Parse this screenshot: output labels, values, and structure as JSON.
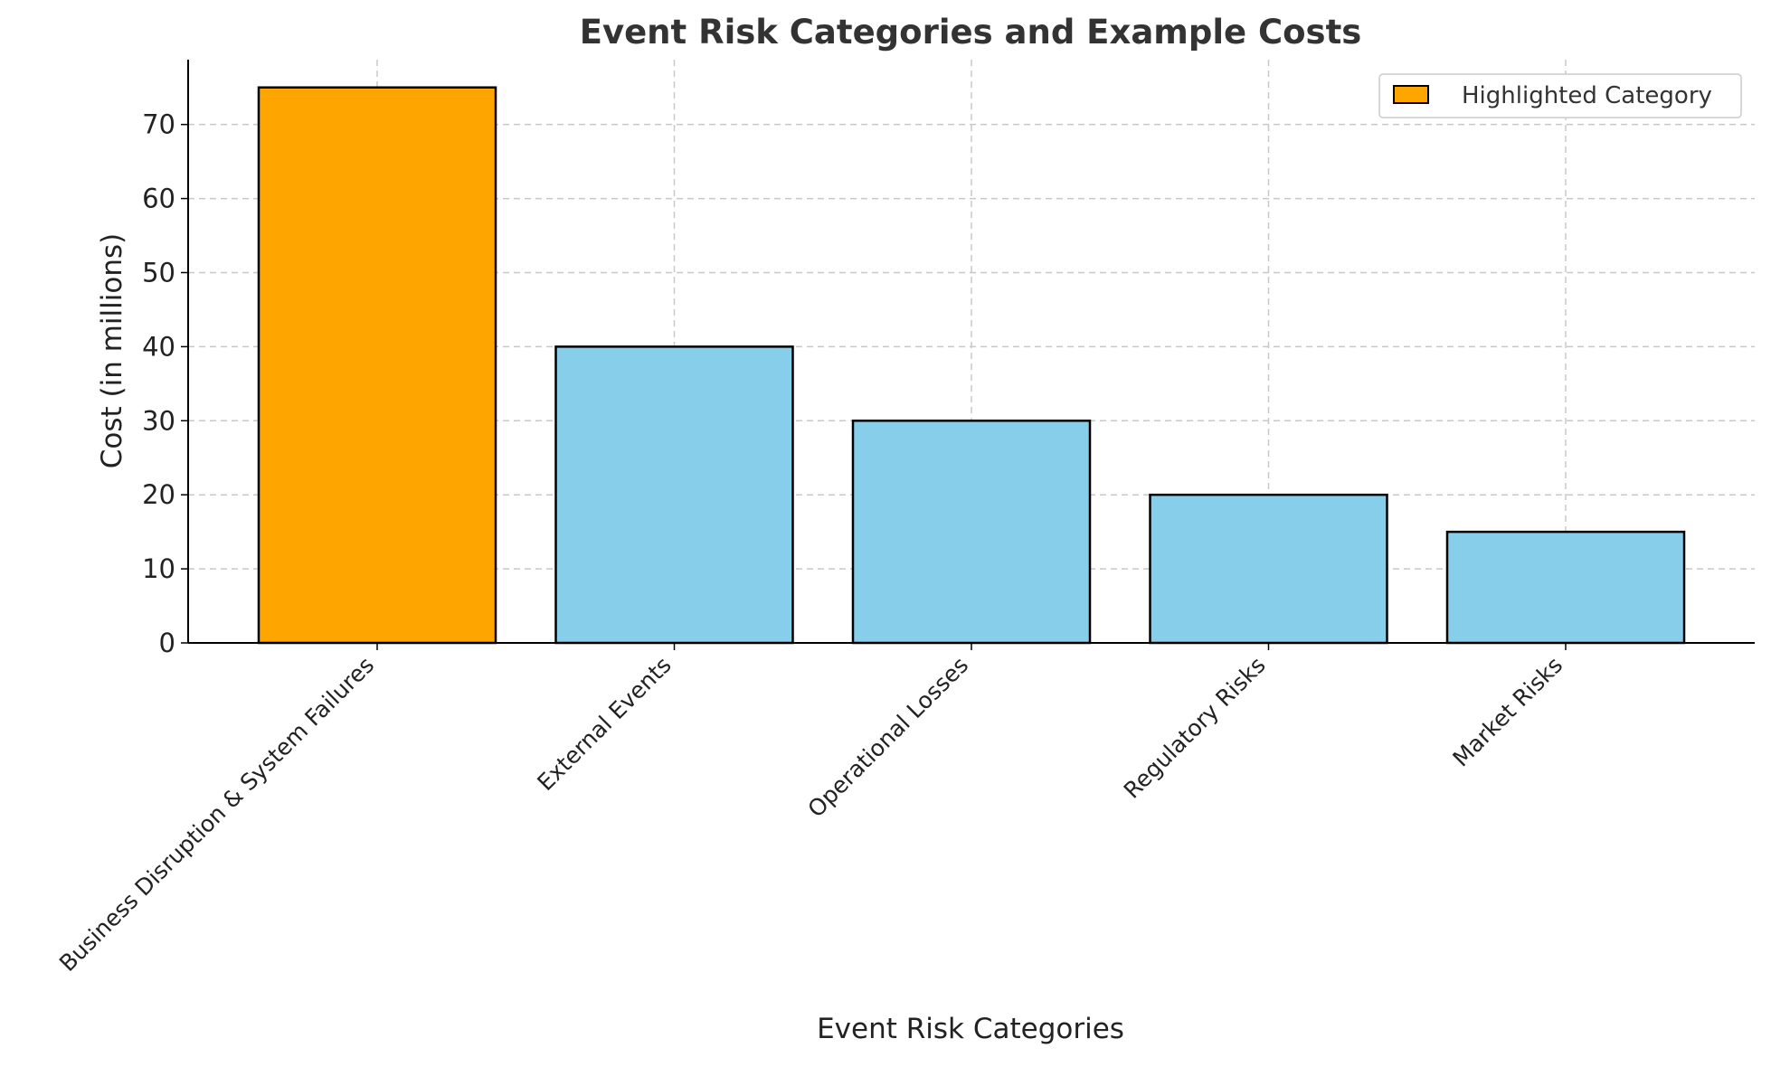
{
  "chart_data": {
    "type": "bar",
    "title": "Event Risk Categories and Example Costs",
    "xlabel": "Event Risk Categories",
    "ylabel": "Cost (in millions)",
    "categories": [
      "Business Disruption & System Failures",
      "External Events",
      "Operational Losses",
      "Regulatory Risks",
      "Market Risks"
    ],
    "values": [
      75,
      40,
      30,
      20,
      15
    ],
    "highlighted_index": 0,
    "ylim": [
      0,
      78.75
    ],
    "yticks": [
      0,
      10,
      20,
      30,
      40,
      50,
      60,
      70
    ],
    "grid": true,
    "legend": {
      "position": "top-right",
      "entries": [
        "Highlighted Category"
      ]
    },
    "colors": {
      "highlight": "#FFA500",
      "default": "#87CEEB",
      "edge": "#000000"
    }
  }
}
